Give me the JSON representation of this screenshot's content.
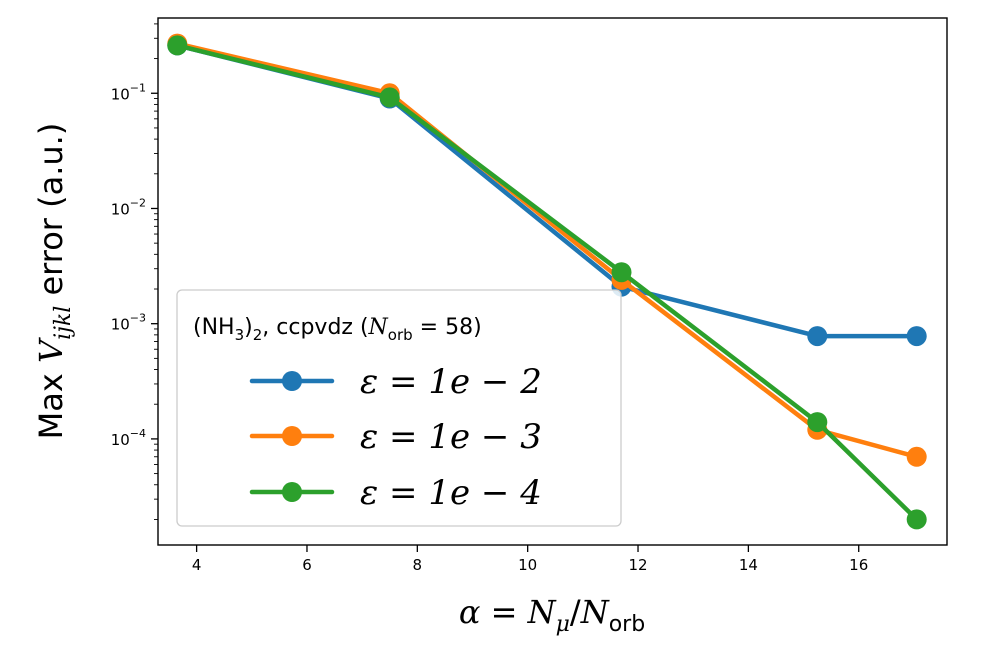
{
  "chart_data": {
    "type": "line",
    "title": "",
    "xlabel": "α = N_μ/N_orb",
    "ylabel": "Max V_ijkl error (a.u.)",
    "xscale": "linear",
    "yscale": "log",
    "xlim": [
      3.3,
      17.6
    ],
    "ylim": [
      1.2e-05,
      0.45
    ],
    "x_ticks": [
      4,
      6,
      8,
      10,
      12,
      14,
      16
    ],
    "y_ticks": [
      0.1,
      0.01,
      0.001,
      0.0001
    ],
    "x_tick_labels": [
      "4",
      "6",
      "8",
      "10",
      "12",
      "14",
      "16"
    ],
    "y_tick_labels": [
      {
        "base": "10",
        "exp": "−1"
      },
      {
        "base": "10",
        "exp": "−2"
      },
      {
        "base": "10",
        "exp": "−3"
      },
      {
        "base": "10",
        "exp": "−4"
      }
    ],
    "legend": {
      "location": "lower left",
      "title": "(NH3)2, ccpvdz (N_orb = 58)"
    },
    "series": [
      {
        "name": "ε = 1e − 2",
        "color": "#1f77b4",
        "x": [
          3.65,
          7.5,
          11.7,
          15.25,
          17.05
        ],
        "y": [
          0.26,
          0.09,
          0.0021,
          0.00078,
          0.00078
        ]
      },
      {
        "name": "ε = 1e − 3",
        "color": "#ff7f0e",
        "x": [
          3.65,
          7.5,
          11.7,
          15.25,
          17.05
        ],
        "y": [
          0.27,
          0.1,
          0.0024,
          0.00012,
          7e-05
        ]
      },
      {
        "name": "ε = 1e − 4",
        "color": "#2ca02c",
        "x": [
          3.65,
          7.5,
          11.7,
          15.25,
          17.05
        ],
        "y": [
          0.26,
          0.092,
          0.0028,
          0.00014,
          2e-05
        ]
      }
    ]
  }
}
